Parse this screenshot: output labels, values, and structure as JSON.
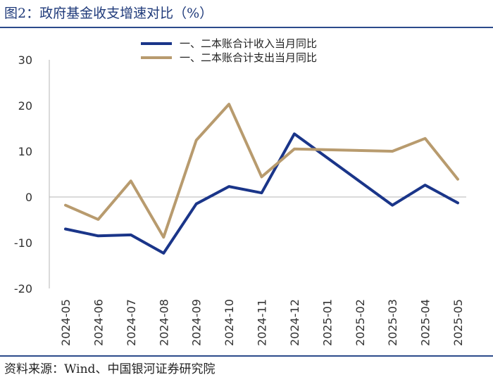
{
  "figure": {
    "title": "图2：政府基金收支增速对比（%）",
    "source": "资料来源：Wind、中国银河证券研究院"
  },
  "colors": {
    "revenue": "#1a3589",
    "expenditure": "#b89b6e",
    "axis": "#b5b5b5",
    "rule": "#2b4a8b"
  },
  "chart_data": {
    "type": "line",
    "title": "图2：政府基金收支增速对比（%）",
    "xlabel": "",
    "ylabel": "",
    "ylim": [
      -20,
      30
    ],
    "yticks": [
      30,
      20,
      10,
      0,
      -10,
      -20
    ],
    "grid": false,
    "legend_position": "top-center",
    "categories": [
      "2024-05",
      "2024-06",
      "2024-07",
      "2024-08",
      "2024-09",
      "2024-10",
      "2024-11",
      "2024-12",
      "2025-01",
      "2025-02",
      "2025-03",
      "2025-04",
      "2025-05"
    ],
    "series": [
      {
        "name": "一、二本账合计收入当月同比",
        "values": [
          -7.0,
          -8.5,
          -8.3,
          -12.3,
          -1.5,
          2.3,
          0.9,
          13.8,
          null,
          null,
          -1.8,
          2.6,
          -1.3
        ]
      },
      {
        "name": "一、二本账合计支出当月同比",
        "values": [
          -1.8,
          -4.9,
          3.5,
          -8.8,
          12.4,
          20.3,
          4.4,
          10.5,
          null,
          null,
          10.0,
          12.8,
          3.9
        ]
      }
    ]
  }
}
